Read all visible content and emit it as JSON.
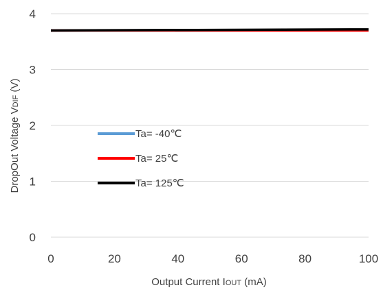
{
  "chart_data": {
    "type": "line",
    "title": "",
    "xlabel": "Output Current I",
    "xlabel_sub": "OUT",
    "xlabel_unit": " (mA)",
    "ylabel": "DropOut Voltage V",
    "ylabel_sub": "DIF",
    "ylabel_unit": " (V)",
    "xlim": [
      0,
      100
    ],
    "ylim": [
      0,
      4
    ],
    "x_ticks": [
      "0",
      "20",
      "40",
      "60",
      "80",
      "100"
    ],
    "y_ticks": [
      "0",
      "1",
      "2",
      "3",
      "4"
    ],
    "grid": "horizontal",
    "legend_position": "center-left",
    "series": [
      {
        "name": "Ta= -40℃",
        "color": "#5b9bd5",
        "x": [
          0,
          100
        ],
        "y": [
          3.7,
          3.71
        ]
      },
      {
        "name": "Ta= 25℃",
        "color": "#ff0000",
        "x": [
          0,
          100
        ],
        "y": [
          3.7,
          3.7
        ]
      },
      {
        "name": "Ta= 125℃",
        "color": "#000000",
        "x": [
          0,
          100
        ],
        "y": [
          3.7,
          3.72
        ]
      }
    ]
  }
}
